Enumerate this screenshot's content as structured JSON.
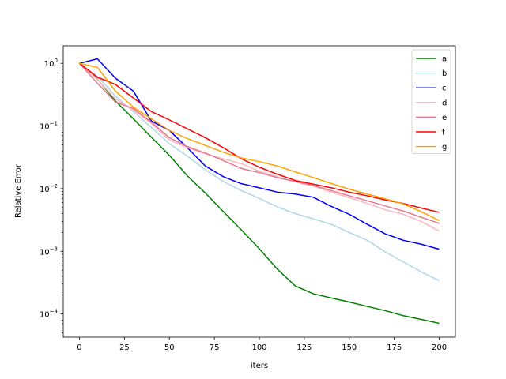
{
  "chart_data": {
    "type": "line",
    "xlabel": "iters",
    "ylabel": "Relative Error",
    "xlim": [
      -9,
      209
    ],
    "ylim_log10": [
      -4.37,
      0.28
    ],
    "yscale": "log",
    "legend_position": "top-right",
    "grid": false,
    "xticks": [
      0,
      25,
      50,
      75,
      100,
      125,
      150,
      175,
      200
    ],
    "xtick_labels": [
      "0",
      "25",
      "50",
      "75",
      "100",
      "125",
      "150",
      "175",
      "200"
    ],
    "yticks_log10": [
      -4,
      -3,
      -2,
      -1,
      0
    ],
    "ytick_labels": [
      "10",
      "10",
      "10",
      "10",
      "10"
    ],
    "ytick_exponents": [
      "−4",
      "−3",
      "−2",
      "−1",
      "0"
    ],
    "series": [
      {
        "name": "a",
        "color": "#008000",
        "x": [
          0,
          10,
          20,
          30,
          40,
          50,
          60,
          70,
          80,
          90,
          100,
          110,
          120,
          130,
          140,
          150,
          160,
          170,
          180,
          190,
          200
        ],
        "y": [
          1.0,
          0.56,
          0.25,
          0.13,
          0.066,
          0.034,
          0.016,
          0.0085,
          0.0043,
          0.0022,
          0.0011,
          0.00052,
          0.00028,
          0.00021,
          0.00018,
          0.000155,
          0.000132,
          0.000113,
          9.4e-05,
          8.2e-05,
          7.1e-05
        ]
      },
      {
        "name": "b",
        "color": "#add8e6",
        "x": [
          0,
          10,
          20,
          30,
          40,
          50,
          60,
          70,
          80,
          90,
          100,
          110,
          120,
          130,
          140,
          150,
          160,
          170,
          180,
          190,
          200
        ],
        "y": [
          1.0,
          0.62,
          0.3,
          0.17,
          0.095,
          0.052,
          0.033,
          0.02,
          0.013,
          0.0093,
          0.007,
          0.0051,
          0.004,
          0.0033,
          0.0027,
          0.002,
          0.0015,
          0.00098,
          0.00068,
          0.00047,
          0.00034
        ]
      },
      {
        "name": "c",
        "color": "#0000ff",
        "x": [
          0,
          10,
          20,
          30,
          40,
          50,
          60,
          70,
          80,
          90,
          100,
          110,
          120,
          130,
          140,
          150,
          160,
          170,
          180,
          190,
          200
        ],
        "y": [
          1.0,
          1.18,
          0.58,
          0.36,
          0.12,
          0.085,
          0.045,
          0.023,
          0.0155,
          0.012,
          0.0103,
          0.0088,
          0.0082,
          0.0073,
          0.0052,
          0.0039,
          0.0027,
          0.0019,
          0.0015,
          0.0013,
          0.00108
        ]
      },
      {
        "name": "d",
        "color": "#ffb6c1",
        "x": [
          0,
          10,
          20,
          30,
          40,
          50,
          60,
          70,
          80,
          90,
          100,
          110,
          120,
          130,
          140,
          150,
          160,
          170,
          180,
          190,
          200
        ],
        "y": [
          1.0,
          0.55,
          0.27,
          0.18,
          0.11,
          0.06,
          0.045,
          0.036,
          0.03,
          0.025,
          0.019,
          0.0155,
          0.0128,
          0.011,
          0.0088,
          0.0072,
          0.0058,
          0.0046,
          0.0039,
          0.003,
          0.0021
        ]
      },
      {
        "name": "e",
        "color": "#e6788f",
        "x": [
          0,
          10,
          20,
          30,
          40,
          50,
          60,
          70,
          80,
          90,
          100,
          110,
          120,
          130,
          140,
          150,
          160,
          170,
          180,
          190,
          200
        ],
        "y": [
          1.0,
          0.48,
          0.24,
          0.19,
          0.115,
          0.065,
          0.047,
          0.037,
          0.028,
          0.021,
          0.018,
          0.015,
          0.013,
          0.0112,
          0.0093,
          0.0077,
          0.0064,
          0.0053,
          0.0044,
          0.0035,
          0.0028
        ]
      },
      {
        "name": "f",
        "color": "#ff0000",
        "x": [
          0,
          10,
          20,
          30,
          40,
          50,
          60,
          70,
          80,
          90,
          100,
          110,
          120,
          130,
          140,
          150,
          160,
          170,
          180,
          190,
          200
        ],
        "y": [
          1.0,
          0.6,
          0.46,
          0.28,
          0.17,
          0.125,
          0.09,
          0.065,
          0.045,
          0.03,
          0.022,
          0.017,
          0.0135,
          0.0118,
          0.0103,
          0.0088,
          0.0077,
          0.0066,
          0.0058,
          0.0049,
          0.0042
        ]
      },
      {
        "name": "g",
        "color": "#ffa500",
        "x": [
          0,
          10,
          20,
          30,
          40,
          50,
          60,
          70,
          80,
          90,
          100,
          110,
          120,
          130,
          140,
          150,
          160,
          170,
          180,
          190,
          200
        ],
        "y": [
          1.0,
          0.86,
          0.36,
          0.2,
          0.13,
          0.085,
          0.063,
          0.049,
          0.038,
          0.031,
          0.027,
          0.023,
          0.0185,
          0.015,
          0.0121,
          0.0098,
          0.0082,
          0.0069,
          0.0057,
          0.0043,
          0.0031
        ]
      }
    ]
  }
}
